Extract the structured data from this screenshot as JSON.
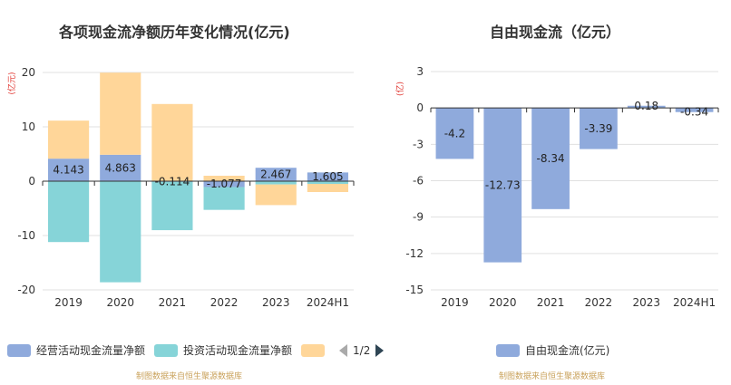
{
  "left": {
    "title": "各项现金流净额历年变化情况(亿元)",
    "legend": [
      {
        "label": "经营活动现金流量净额",
        "color": "#8faadc"
      },
      {
        "label": "投资活动现金流量净额",
        "color": "#86d4d8"
      },
      {
        "label": "",
        "color": "#ffd699"
      }
    ],
    "pager_text": "1/2",
    "source": "制图数据来自恒生聚源数据库"
  },
  "right": {
    "title": "自由现金流（亿元）",
    "legend": [
      {
        "label": "自由现金流(亿元)",
        "color": "#8faadc"
      }
    ],
    "source": "制图数据来自恒生聚源数据库"
  },
  "chart_data": [
    {
      "type": "bar",
      "stacked": true,
      "title": "各项现金流净额历年变化情况(亿元)",
      "ylabel": "(亿元)",
      "ylim": [
        -20,
        20
      ],
      "yticks": [
        20,
        10,
        0,
        -10,
        -20
      ],
      "categories": [
        "2019",
        "2020",
        "2021",
        "2022",
        "2023",
        "2024H1"
      ],
      "series": [
        {
          "name": "经营活动现金流量净额",
          "color": "#8faadc",
          "values": [
            4.143,
            4.863,
            -0.114,
            -1.077,
            2.467,
            1.605
          ]
        },
        {
          "name": "投资活动现金流量净额",
          "color": "#86d4d8",
          "values": [
            -11.2,
            -18.6,
            -8.9,
            -4.2,
            -0.6,
            -0.5
          ]
        },
        {
          "color": "#ffd699",
          "values": [
            7.0,
            15.1,
            14.2,
            1.0,
            -3.8,
            -1.5
          ]
        }
      ],
      "data_labels": [
        "4.143",
        "4.863",
        "-0.114",
        "-1.077",
        "2.467",
        "1.605"
      ],
      "grid": true,
      "legend_position": "bottom"
    },
    {
      "type": "bar",
      "title": "自由现金流（亿元）",
      "ylabel": "(亿)",
      "ylim": [
        -15,
        3
      ],
      "yticks": [
        3,
        0,
        -3,
        -6,
        -9,
        -12,
        -15
      ],
      "categories": [
        "2019",
        "2020",
        "2021",
        "2022",
        "2023",
        "2024H1"
      ],
      "series": [
        {
          "name": "自由现金流(亿元)",
          "color": "#8faadc",
          "values": [
            -4.2,
            -12.73,
            -8.34,
            -3.39,
            0.18,
            -0.34
          ]
        }
      ],
      "data_labels": [
        "-4.2",
        "-12.73",
        "-8.34",
        "-3.39",
        "0.18",
        "-0.34"
      ],
      "grid": true,
      "legend_position": "bottom"
    }
  ]
}
